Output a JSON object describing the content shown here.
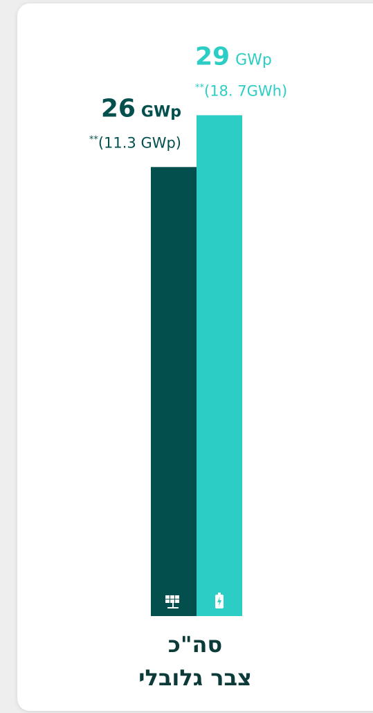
{
  "chart_data": {
    "type": "bar",
    "title": [
      "סה\"כ",
      "צבר גלובלי"
    ],
    "categories": [
      null,
      null
    ],
    "values": [
      26,
      29
    ],
    "units": [
      "GWp",
      "GWp"
    ],
    "note_marks": [
      "**",
      "**"
    ],
    "notes": [
      "(11.3 GWp)",
      "(18. 7GWh)"
    ],
    "colors": [
      "#034f4e",
      "#2bcdc4"
    ],
    "ylim": [
      0,
      30
    ]
  }
}
